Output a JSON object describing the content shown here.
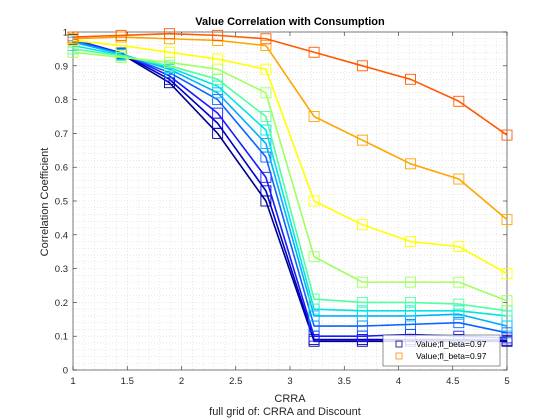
{
  "chart_data": {
    "type": "line",
    "title": "Value Correlation with Consumption",
    "xlabel": "CRRA",
    "ylabel": "Correlation Coefficient",
    "caption": "full grid of: CRRA and Discount",
    "xlim": [
      1,
      5
    ],
    "ylim": [
      0,
      1
    ],
    "xticks": [
      "1",
      "1.5",
      "2",
      "2.5",
      "3",
      "3.5",
      "4",
      "4.5",
      "5"
    ],
    "yticks": [
      "0",
      "0.1",
      "0.2",
      "0.3",
      "0.4",
      "0.5",
      "0.6",
      "0.7",
      "0.8",
      "0.9",
      "1"
    ],
    "grid": "minor dotted",
    "legend_position": "bottom-right",
    "x": [
      1,
      1.444,
      1.889,
      2.333,
      2.778,
      3.222,
      3.667,
      4.111,
      4.556,
      5
    ],
    "series": [
      {
        "name": "",
        "color": "#00008f",
        "values": [
          0.975,
          0.935,
          0.85,
          0.7,
          0.5,
          0.085,
          0.085,
          0.085,
          0.085,
          0.085
        ]
      },
      {
        "name": "",
        "color": "#0000c8",
        "values": [
          0.977,
          0.937,
          0.86,
          0.73,
          0.53,
          0.09,
          0.09,
          0.09,
          0.09,
          0.088
        ]
      },
      {
        "name": "",
        "color": "#1a1aff",
        "values": [
          0.978,
          0.938,
          0.87,
          0.76,
          0.57,
          0.1,
          0.1,
          0.105,
          0.1,
          0.095
        ]
      },
      {
        "name": "",
        "color": "#0a64ff",
        "values": [
          0.975,
          0.935,
          0.88,
          0.8,
          0.63,
          0.13,
          0.13,
          0.135,
          0.14,
          0.11
        ]
      },
      {
        "name": "",
        "color": "#00b0ff",
        "values": [
          0.97,
          0.935,
          0.89,
          0.82,
          0.67,
          0.16,
          0.16,
          0.16,
          0.165,
          0.13
        ]
      },
      {
        "name": "",
        "color": "#00e4e4",
        "values": [
          0.96,
          0.932,
          0.895,
          0.84,
          0.71,
          0.18,
          0.175,
          0.175,
          0.175,
          0.16
        ]
      },
      {
        "name": "",
        "color": "#50ffa0",
        "values": [
          0.95,
          0.93,
          0.9,
          0.86,
          0.75,
          0.21,
          0.2,
          0.2,
          0.195,
          0.175
        ]
      },
      {
        "name": "",
        "color": "#a0ff60",
        "values": [
          0.94,
          0.925,
          0.91,
          0.89,
          0.82,
          0.335,
          0.26,
          0.26,
          0.26,
          0.205
        ]
      },
      {
        "name": "",
        "color": "#ffff00",
        "values": [
          0.975,
          0.96,
          0.94,
          0.92,
          0.89,
          0.5,
          0.43,
          0.38,
          0.365,
          0.285
        ]
      },
      {
        "name": "",
        "color": "#ffa500",
        "values": [
          0.98,
          0.985,
          0.98,
          0.975,
          0.96,
          0.75,
          0.68,
          0.61,
          0.565,
          0.445
        ]
      },
      {
        "name": "",
        "color": "#ff5a00",
        "values": [
          0.985,
          0.99,
          0.995,
          0.99,
          0.98,
          0.94,
          0.9,
          0.86,
          0.795,
          0.695
        ]
      }
    ],
    "legend": [
      {
        "label": "Value;fl_beta=0.97",
        "color": "#00008f"
      },
      {
        "label": "Value;fl_beta=0.97",
        "color": "#ff8c00"
      }
    ]
  }
}
